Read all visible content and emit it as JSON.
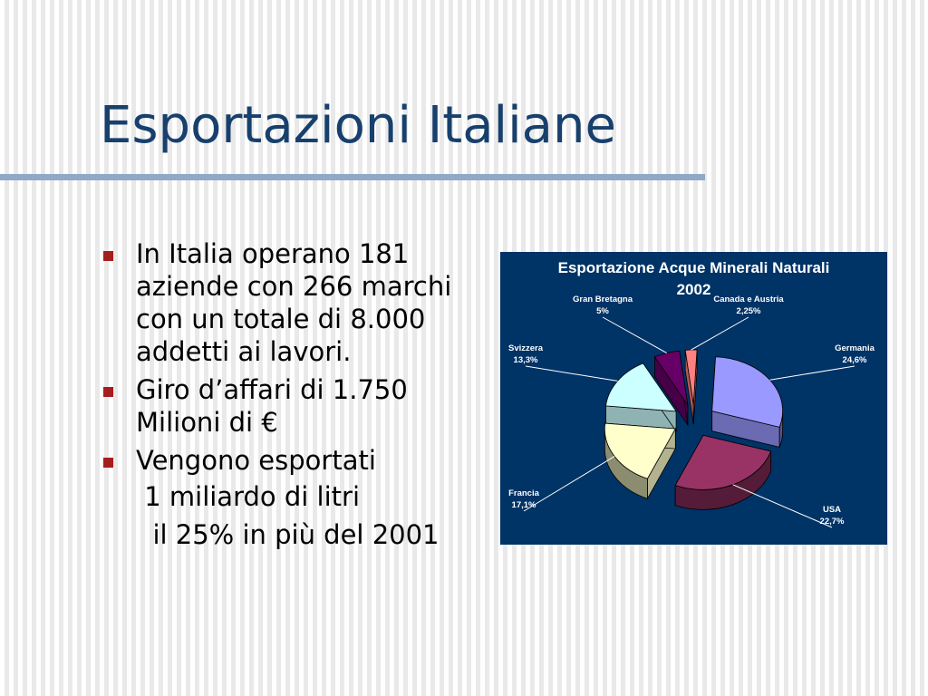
{
  "slide": {
    "title": "Esportazioni Italiane",
    "bullets": [
      "In Italia operano 181 aziende con 266 marchi con un totale di 8.000 addetti ai lavori.",
      "Giro d’affari di 1.750 Milioni di €",
      "Vengono esportati"
    ],
    "sub_lines": [
      " 1 miliardo di litri",
      "  il 25% in più del 2001"
    ]
  },
  "colors": {
    "title": "#17406d",
    "bullet_marker": "#a41e1e",
    "chart_background": "#003366"
  },
  "chart_data": {
    "type": "pie",
    "title": "Esportazione Acque Minerali Naturali",
    "subtitle": "2002",
    "slices": [
      {
        "name": "Germania",
        "value": 24.6,
        "label": "24,6%",
        "color": "#9999ff"
      },
      {
        "name": "USA",
        "value": 22.7,
        "label": "22,7%",
        "color": "#993366"
      },
      {
        "name": "Francia",
        "value": 17.1,
        "label": "17,1%",
        "color": "#ffffcc"
      },
      {
        "name": "Svizzera",
        "value": 13.3,
        "label": "13,3%",
        "color": "#ccffff"
      },
      {
        "name": "Gran Bretagna",
        "value": 5,
        "label": "5%",
        "color": "#660066"
      },
      {
        "name": "Canada e Austria",
        "value": 2.25,
        "label": "2,25%",
        "color": "#ff8080"
      }
    ],
    "style": "3d-exploded"
  }
}
